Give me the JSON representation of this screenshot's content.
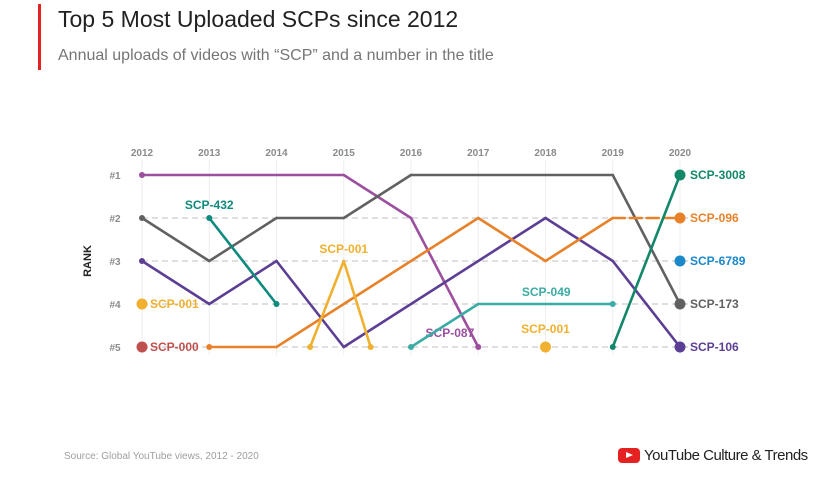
{
  "header": {
    "title": "Top 5 Most Uploaded SCPs since 2012",
    "subtitle": "Annual uploads of videos with “SCP” and a number in the title"
  },
  "footer": {
    "source": "Source: Global YouTube views, 2012 - 2020",
    "brand": "YouTube Culture & Trends"
  },
  "chart_data": {
    "type": "line",
    "title": "Top 5 Most Uploaded SCPs since 2012",
    "ylabel": "RANK",
    "x": [
      2012,
      2013,
      2014,
      2015,
      2016,
      2017,
      2018,
      2019,
      2020
    ],
    "x_tick_labels": [
      "2012",
      "2013",
      "2014",
      "2015",
      "2016",
      "2017",
      "2018",
      "2019",
      "2020"
    ],
    "y_tick_labels": [
      "#1",
      "#2",
      "#3",
      "#4",
      "#5"
    ],
    "ylim": [
      1,
      5
    ],
    "y_inverted": true,
    "grid": "dashed horizontal",
    "series": [
      {
        "name": "SCP-087",
        "color": "#9b4f9e",
        "points": [
          [
            2012,
            1
          ],
          [
            2015,
            1
          ],
          [
            2016,
            2
          ],
          [
            2017,
            5
          ]
        ]
      },
      {
        "name": "SCP-173",
        "color": "#616161",
        "points": [
          [
            2012,
            2
          ],
          [
            2013,
            3
          ],
          [
            2014,
            2
          ],
          [
            2015,
            2
          ],
          [
            2016,
            1
          ],
          [
            2019,
            1
          ],
          [
            2020,
            4
          ]
        ]
      },
      {
        "name": "SCP-106",
        "color": "#5c3f94",
        "points": [
          [
            2012,
            3
          ],
          [
            2013,
            4
          ],
          [
            2014,
            3
          ],
          [
            2015,
            5
          ],
          [
            2018,
            2
          ],
          [
            2019,
            3
          ],
          [
            2020,
            5
          ]
        ]
      },
      {
        "name": "SCP-096",
        "color": "#e8822a",
        "points": [
          [
            2013,
            5
          ],
          [
            2014,
            5
          ],
          [
            2017,
            2
          ],
          [
            2018,
            3
          ],
          [
            2019,
            2
          ],
          [
            2020,
            2
          ]
        ]
      },
      {
        "name": "SCP-432",
        "color": "#0f8a7e",
        "points": [
          [
            2013,
            2
          ],
          [
            2014,
            4
          ]
        ]
      },
      {
        "name": "SCP-001",
        "color": "#f0b030",
        "points": [
          [
            2012,
            4
          ]
        ]
      },
      {
        "name": "SCP-001",
        "color": "#f0b030",
        "points": [
          [
            2014.5,
            5
          ],
          [
            2015,
            3
          ],
          [
            2015.4,
            5
          ]
        ]
      },
      {
        "name": "SCP-001",
        "color": "#f0b030",
        "points": [
          [
            2018,
            5
          ]
        ]
      },
      {
        "name": "SCP-049",
        "color": "#3aaba5",
        "points": [
          [
            2016,
            5
          ],
          [
            2017,
            4
          ],
          [
            2019,
            4
          ]
        ]
      },
      {
        "name": "SCP-3008",
        "color": "#13876a",
        "points": [
          [
            2019,
            5
          ],
          [
            2020,
            1
          ]
        ]
      },
      {
        "name": "SCP-6789",
        "color": "#1a88c9",
        "points": [
          [
            2020,
            3
          ]
        ]
      },
      {
        "name": "SCP-000",
        "color": "#c0504d",
        "points": [
          [
            2012,
            5
          ]
        ]
      }
    ]
  }
}
